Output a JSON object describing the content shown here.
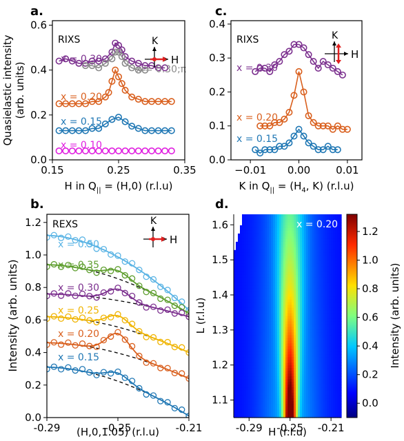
{
  "chart_data": [
    {
      "panel_label": "a.",
      "type": "scatter",
      "xlabel": "H in Q",
      "xlabel_sub": "||",
      "xlabel_tail": " = (H,0) (r.l.u)",
      "ylabel_line1": "Quasielastic intensity",
      "ylabel_line2": "(arb. units)",
      "xlim": [
        0.15,
        0.35
      ],
      "ylim": [
        0.0,
        0.62
      ],
      "xticks": [
        "0.15",
        "0.25",
        "0.35"
      ],
      "yticks": [
        "0.0",
        "0.2",
        "0.4",
        "0.6"
      ],
      "method_label": "RIXS",
      "inset": {
        "vertical_label": "K",
        "horizontal_label": "H",
        "arrow": "horizontal"
      },
      "series": [
        {
          "name": "x = 0.30",
          "color": "#7b2f8e",
          "fit": true,
          "x": [
            0.16,
            0.17,
            0.18,
            0.19,
            0.2,
            0.21,
            0.22,
            0.23,
            0.24,
            0.245,
            0.25,
            0.255,
            0.26,
            0.27,
            0.28,
            0.29,
            0.3,
            0.31,
            0.32
          ],
          "y": [
            0.44,
            0.45,
            0.44,
            0.43,
            0.43,
            0.44,
            0.44,
            0.45,
            0.48,
            0.52,
            0.51,
            0.49,
            0.46,
            0.44,
            0.43,
            0.42,
            0.42,
            0.41,
            0.41
          ]
        },
        {
          "name": "x = 0.30;π",
          "color": "#8a8a8a",
          "fit": true,
          "x": [
            0.2,
            0.21,
            0.22,
            0.23,
            0.24,
            0.245,
            0.25,
            0.255,
            0.26,
            0.27,
            0.28,
            0.29
          ],
          "y": [
            0.42,
            0.42,
            0.41,
            0.43,
            0.45,
            0.48,
            0.48,
            0.46,
            0.43,
            0.41,
            0.4,
            0.4
          ]
        },
        {
          "name": "x = 0.20",
          "color": "#d95f1d",
          "fit": true,
          "x": [
            0.16,
            0.17,
            0.18,
            0.19,
            0.2,
            0.21,
            0.22,
            0.23,
            0.235,
            0.24,
            0.245,
            0.25,
            0.255,
            0.26,
            0.27,
            0.28,
            0.29,
            0.3,
            0.31,
            0.32,
            0.33
          ],
          "y": [
            0.25,
            0.25,
            0.25,
            0.25,
            0.25,
            0.26,
            0.26,
            0.28,
            0.3,
            0.35,
            0.4,
            0.37,
            0.34,
            0.31,
            0.28,
            0.27,
            0.26,
            0.26,
            0.26,
            0.26,
            0.26
          ]
        },
        {
          "name": "x = 0.15",
          "color": "#1f77b4",
          "fit": true,
          "x": [
            0.16,
            0.17,
            0.18,
            0.19,
            0.2,
            0.21,
            0.22,
            0.23,
            0.24,
            0.25,
            0.26,
            0.27,
            0.28,
            0.29,
            0.3,
            0.31,
            0.32,
            0.33
          ],
          "y": [
            0.13,
            0.13,
            0.13,
            0.13,
            0.13,
            0.14,
            0.14,
            0.16,
            0.18,
            0.19,
            0.17,
            0.15,
            0.14,
            0.13,
            0.13,
            0.13,
            0.13,
            0.13
          ]
        },
        {
          "name": "x = 0.10",
          "color": "#e020e0",
          "fit": false,
          "x": [
            0.16,
            0.17,
            0.18,
            0.19,
            0.2,
            0.21,
            0.22,
            0.23,
            0.24,
            0.25,
            0.26,
            0.27,
            0.28,
            0.29,
            0.3,
            0.31,
            0.32,
            0.33
          ],
          "y": [
            0.04,
            0.04,
            0.04,
            0.04,
            0.04,
            0.04,
            0.04,
            0.04,
            0.04,
            0.04,
            0.04,
            0.04,
            0.04,
            0.04,
            0.04,
            0.04,
            0.04,
            0.04
          ]
        }
      ]
    },
    {
      "panel_label": "c.",
      "type": "scatter",
      "xlabel": "K in Q",
      "xlabel_sub": "||",
      "xlabel_tail": " = (H",
      "xlabel_sub2": "4",
      "xlabel_tail2": ", K) (r.l.u)",
      "xlim": [
        -0.014,
        0.013
      ],
      "ylim": [
        0.0,
        0.41
      ],
      "xticks": [
        "−0.01",
        "0.00",
        "0.01"
      ],
      "xtick_values": [
        -0.01,
        0.0,
        0.01
      ],
      "yticks": [
        "0.0",
        "0.1",
        "0.2",
        "0.3",
        "0.4"
      ],
      "method_label": "RIXS",
      "inset": {
        "vertical_label": "K",
        "horizontal_label": "H",
        "arrow": "vertical"
      },
      "series": [
        {
          "name": "x = 0.30",
          "color": "#7b2f8e",
          "fit": true,
          "x": [
            -0.009,
            -0.008,
            -0.007,
            -0.006,
            -0.005,
            -0.004,
            -0.003,
            -0.002,
            -0.001,
            0.0,
            0.001,
            0.002,
            0.003,
            0.004,
            0.005,
            0.006,
            0.007,
            0.008,
            0.009
          ],
          "y": [
            0.26,
            0.27,
            0.27,
            0.26,
            0.28,
            0.29,
            0.31,
            0.32,
            0.34,
            0.34,
            0.33,
            0.31,
            0.29,
            0.27,
            0.29,
            0.28,
            0.27,
            0.26,
            0.25
          ]
        },
        {
          "name": "x = 0.20",
          "color": "#d95f1d",
          "fit": true,
          "x": [
            -0.008,
            -0.007,
            -0.006,
            -0.005,
            -0.004,
            -0.003,
            -0.002,
            -0.001,
            0.0,
            0.001,
            0.002,
            0.003,
            0.004,
            0.005,
            0.006,
            0.007,
            0.008,
            0.009,
            0.01
          ],
          "y": [
            0.1,
            0.1,
            0.1,
            0.11,
            0.11,
            0.12,
            0.14,
            0.19,
            0.26,
            0.2,
            0.13,
            0.11,
            0.1,
            0.1,
            0.1,
            0.09,
            0.1,
            0.09,
            0.09
          ]
        },
        {
          "name": "x = 0.15",
          "color": "#1f77b4",
          "fit": true,
          "x": [
            -0.009,
            -0.008,
            -0.007,
            -0.006,
            -0.005,
            -0.004,
            -0.003,
            -0.002,
            -0.001,
            0.0,
            0.001,
            0.002,
            0.003,
            0.004,
            0.005,
            0.006,
            0.007,
            0.008
          ],
          "y": [
            0.03,
            0.02,
            0.03,
            0.03,
            0.03,
            0.04,
            0.04,
            0.05,
            0.07,
            0.09,
            0.07,
            0.05,
            0.04,
            0.03,
            0.03,
            0.04,
            0.03,
            0.03
          ]
        }
      ]
    },
    {
      "panel_label": "b.",
      "type": "scatter",
      "xlabel": "(H,0,1.05) (r.l.u)",
      "ylabel": "Intensity (arb. units)",
      "xlim": [
        -0.29,
        -0.21
      ],
      "ylim": [
        0.0,
        1.25
      ],
      "xticks": [
        "-0.29",
        "-0.25",
        "-0.21"
      ],
      "yticks": [
        "0.0",
        "0.2",
        "0.4",
        "0.6",
        "0.8",
        "1.0",
        "1.2"
      ],
      "method_label": "REXS",
      "inset": {
        "vertical_label": "K",
        "horizontal_label": "H",
        "arrow": "horizontal"
      },
      "background_line": "dashed black",
      "series": [
        {
          "name": "x = 0.50",
          "color": "#5ab4e5",
          "offset": 1.12,
          "peak": 0.0,
          "drop": 0.46
        },
        {
          "name": "x = 0.35",
          "color": "#5e9e2e",
          "offset": 0.94,
          "peak": 0.05,
          "drop": 0.3
        },
        {
          "name": "x = 0.30",
          "color": "#7b2f8e",
          "offset": 0.76,
          "peak": 0.07,
          "drop": 0.14
        },
        {
          "name": "x = 0.25",
          "color": "#f0b400",
          "offset": 0.62,
          "peak": 0.07,
          "drop": 0.22
        },
        {
          "name": "x = 0.20",
          "color": "#d95f1d",
          "offset": 0.46,
          "peak": 0.12,
          "drop": 0.22
        },
        {
          "name": "x = 0.15",
          "color": "#1f77b4",
          "offset": 0.31,
          "peak": 0.05,
          "drop": 0.3
        }
      ]
    },
    {
      "panel_label": "d.",
      "type": "heatmap",
      "xlabel": "H (r.l.u)",
      "ylabel": "L (r.l.u)",
      "xlim": [
        -0.305,
        -0.2
      ],
      "ylim": [
        1.05,
        1.63
      ],
      "xticks": [
        "-0.29",
        "-0.25",
        "-0.21"
      ],
      "yticks": [
        "1.1",
        "1.2",
        "1.3",
        "1.4",
        "1.5",
        "1.6"
      ],
      "annotation": "x = 0.20",
      "peak_center_h": -0.25,
      "colorbar": {
        "label": "Intensity (arb. units)",
        "range": [
          -0.1,
          1.32
        ],
        "ticks": [
          "0.0",
          "0.2",
          "0.4",
          "0.6",
          "0.8",
          "1.0",
          "1.2"
        ]
      }
    }
  ]
}
